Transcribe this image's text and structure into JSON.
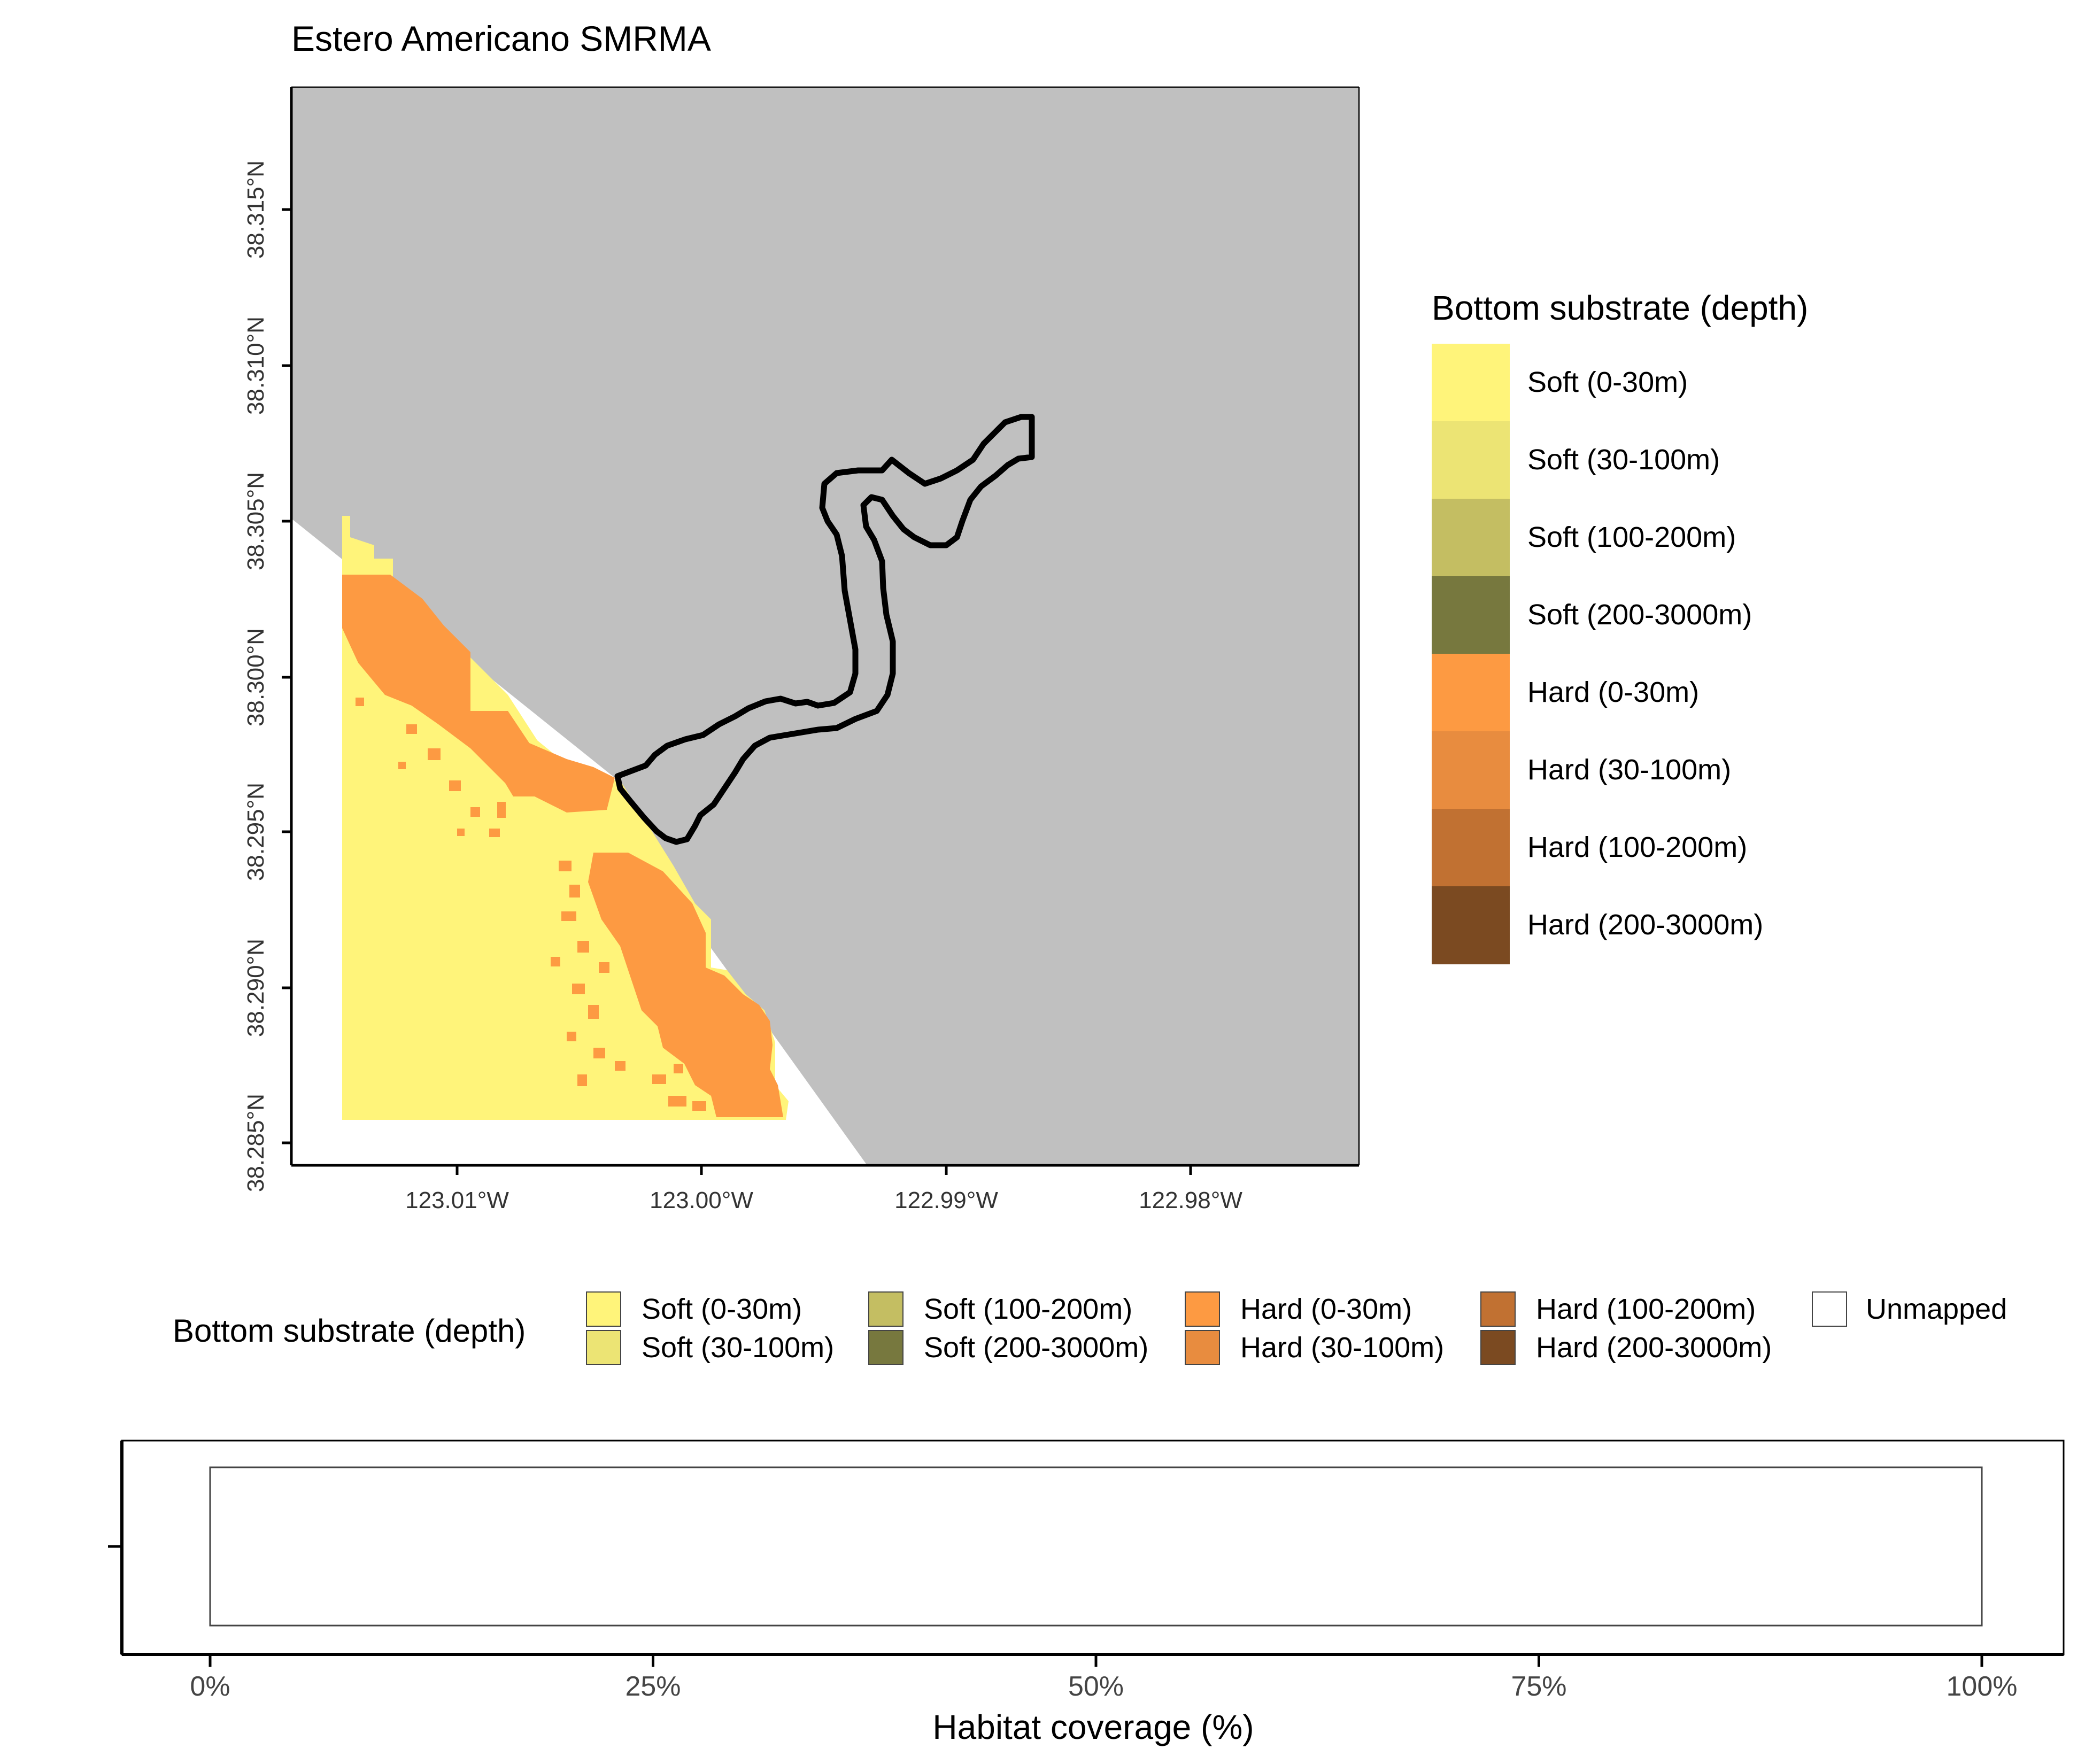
{
  "title": "Estero Americano SMRMA",
  "map": {
    "y_ticks": [
      "38.315°N",
      "38.310°N",
      "38.305°N",
      "38.300°N",
      "38.295°N",
      "38.290°N",
      "38.285°N"
    ],
    "x_ticks": [
      "123.01°W",
      "123.00°W",
      "122.99°W",
      "122.98°W"
    ],
    "colors": {
      "land": "#c0c0c0",
      "water": "#ffffff",
      "boundary": "#000000"
    }
  },
  "legend_right": {
    "title": "Bottom substrate (depth)",
    "items": [
      {
        "label": "Soft (0-30m)",
        "color": "#fff47a"
      },
      {
        "label": "Soft (30-100m)",
        "color": "#ece474"
      },
      {
        "label": "Soft (100-200m)",
        "color": "#c4be62"
      },
      {
        "label": "Soft (200-3000m)",
        "color": "#77783e"
      },
      {
        "label": "Hard (0-30m)",
        "color": "#fd9a42"
      },
      {
        "label": "Hard (30-100m)",
        "color": "#e88c3f"
      },
      {
        "label": "Hard (100-200m)",
        "color": "#c17132"
      },
      {
        "label": "Hard (200-3000m)",
        "color": "#7b4a21"
      }
    ]
  },
  "legend_bottom": {
    "title": "Bottom substrate (depth)",
    "items": [
      {
        "label": "Soft (0-30m)",
        "color": "#fff47a"
      },
      {
        "label": "Soft (30-100m)",
        "color": "#ece474"
      },
      {
        "label": "Soft (100-200m)",
        "color": "#c4be62"
      },
      {
        "label": "Soft (200-3000m)",
        "color": "#77783e"
      },
      {
        "label": "Hard (0-30m)",
        "color": "#fd9a42"
      },
      {
        "label": "Hard (30-100m)",
        "color": "#e88c3f"
      },
      {
        "label": "Hard (100-200m)",
        "color": "#c17132"
      },
      {
        "label": "Hard (200-3000m)",
        "color": "#7b4a21"
      },
      {
        "label": "Unmapped",
        "color": "#ffffff"
      }
    ]
  },
  "chart_data": {
    "type": "bar",
    "orientation": "horizontal",
    "categories": [
      ""
    ],
    "series": [
      {
        "name": "Unmapped",
        "values": [
          100
        ]
      }
    ],
    "xlabel": "Habitat coverage (%)",
    "ylabel": "",
    "xlim": [
      0,
      100
    ],
    "x_ticks": [
      "0%",
      "25%",
      "50%",
      "75%",
      "100%"
    ]
  }
}
